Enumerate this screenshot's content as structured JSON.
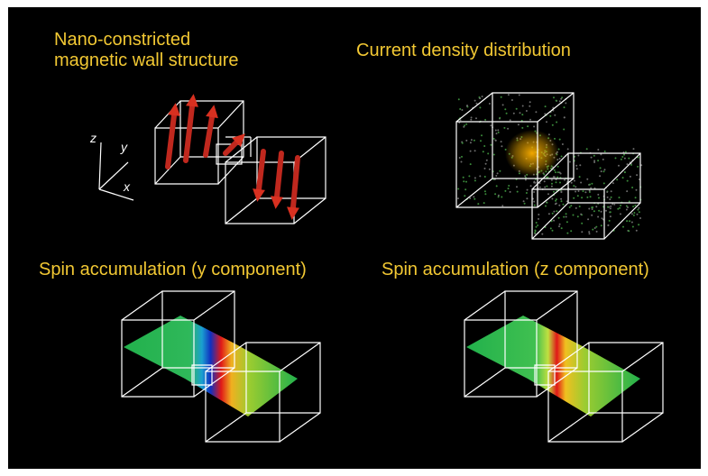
{
  "panels": [
    {
      "title_lines": [
        "Nano-constricted",
        "magnetic wall structure"
      ],
      "axes": {
        "z": "z",
        "y": "y",
        "x": "x"
      }
    },
    {
      "title": "Current density distribution"
    },
    {
      "title": "Spin accumulation (y component)"
    },
    {
      "title": "Spin accumulation (z component)"
    }
  ]
}
